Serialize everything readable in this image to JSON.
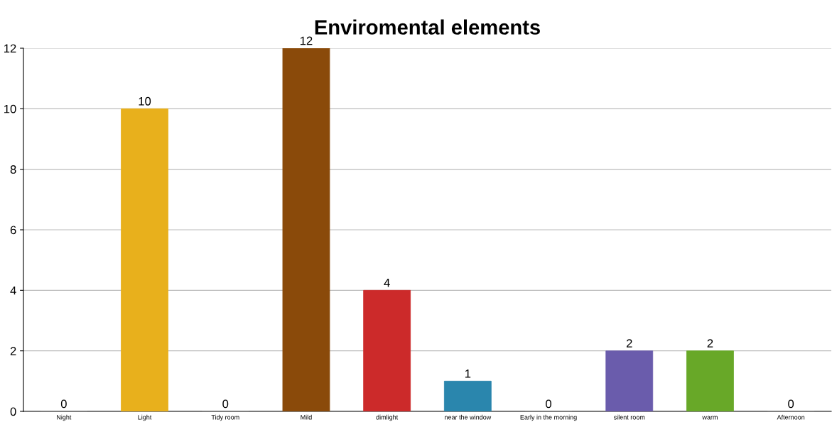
{
  "chart_data": {
    "type": "bar",
    "title": "Enviromental elements",
    "categories": [
      "Night",
      "Light",
      "Tidy room",
      "Mild",
      "dimlight",
      "near the window",
      "Early in the morning",
      "silent room",
      "warm",
      "Afternoon"
    ],
    "values": [
      0,
      10,
      0,
      12,
      4,
      1,
      0,
      2,
      2,
      0
    ],
    "colors": [
      "#888888",
      "#e8b01c",
      "#888888",
      "#8a4a0a",
      "#cc2a2a",
      "#2a86ad",
      "#888888",
      "#6a5cac",
      "#68a828",
      "#888888"
    ],
    "ylim": [
      0,
      12
    ],
    "yticks": [
      0,
      2,
      4,
      6,
      8,
      10,
      12
    ],
    "grid": "y",
    "data_labels": true
  }
}
